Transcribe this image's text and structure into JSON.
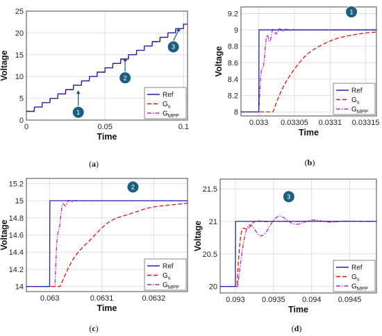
{
  "charts": [
    {
      "id": "a",
      "caption": "(a)",
      "type": "line",
      "xlabel": "Time",
      "ylabel": "Voltage",
      "xlim": [
        0,
        0.1025
      ],
      "ylim": [
        0,
        25
      ],
      "xticks": [
        0,
        0.05,
        0.1
      ],
      "xtick_labels": [
        "0",
        "0.05",
        "0.1"
      ],
      "yticks": [
        0,
        5,
        10,
        15,
        20,
        25
      ],
      "ytick_labels": [
        "0",
        "5",
        "10",
        "15",
        "20",
        "25"
      ],
      "legend_placement": "bottom-right",
      "series": [
        {
          "name": "Ref",
          "color": "#1f1fb0",
          "dash": "solid",
          "model": {
            "kind": "staircase",
            "start_x": 0,
            "end_x": 0.1025,
            "start_y": 2,
            "step_y": 1,
            "step_x": 0.005,
            "max_y": 22
          }
        },
        {
          "name": "G_s",
          "color": "#dd1111",
          "dash": "dashed",
          "model": {
            "kind": "staircase",
            "start_x": 0,
            "end_x": 0.1025,
            "start_y": 2,
            "step_y": 1,
            "step_x": 0.005,
            "max_y": 22
          }
        },
        {
          "name": "G_MPP",
          "color": "#c020c0",
          "dash": "dashdot",
          "model": {
            "kind": "staircase",
            "start_x": 0,
            "end_x": 0.1025,
            "start_y": 2,
            "step_y": 1,
            "step_x": 0.005,
            "max_y": 22
          }
        }
      ],
      "markers": [
        {
          "label": "1",
          "x": 0.033,
          "y": 1.8,
          "arrow_to": [
            0.033,
            6.8
          ]
        },
        {
          "label": "2",
          "x": 0.0628,
          "y": 9.7,
          "arrow_to": [
            0.0628,
            14.3
          ]
        },
        {
          "label": "3",
          "x": 0.0935,
          "y": 16.8,
          "arrow_to": [
            0.0968,
            21.2
          ]
        }
      ]
    },
    {
      "id": "b",
      "caption": "(b)",
      "type": "line",
      "xlabel": "Time",
      "ylabel": "Voltage",
      "xlim": [
        0.032975,
        0.033165
      ],
      "ylim": [
        7.95,
        9.28
      ],
      "xticks": [
        0.033,
        0.03305,
        0.0331,
        0.03315
      ],
      "xtick_labels": [
        "0.033",
        "0.03305",
        "0.0331",
        "0.03315"
      ],
      "yticks": [
        8,
        8.2,
        8.4,
        8.6,
        8.8,
        9,
        9.2
      ],
      "ytick_labels": [
        "8",
        "8.2",
        "8.4",
        "8.6",
        "8.8",
        "9",
        "9.2"
      ],
      "legend_placement": "bottom-right",
      "series": [
        {
          "name": "Ref",
          "color": "#1f1fb0",
          "dash": "solid",
          "model": {
            "kind": "step",
            "x0": 0.033,
            "y0": 8,
            "y1": 9
          }
        },
        {
          "name": "G_s",
          "color": "#dd1111",
          "dash": "dashed",
          "model": {
            "kind": "damped",
            "x0": 0.03302,
            "y0": 8,
            "y1": 9,
            "rise": 4e-05,
            "amp": 0.03,
            "decay": 3e-05,
            "period": 4e-05
          }
        },
        {
          "name": "G_MPP",
          "color": "#c020c0",
          "dash": "dashdot",
          "model": {
            "kind": "damped",
            "x0": 0.033,
            "y0": 8,
            "y1": 9,
            "rise": 6e-06,
            "amp": 0.26,
            "decay": 1.2e-05,
            "period": 9e-06
          }
        }
      ],
      "markers": [
        {
          "label": "1",
          "x": 0.03313,
          "y": 9.22
        }
      ]
    },
    {
      "id": "c",
      "caption": "(c)",
      "type": "line",
      "xlabel": "Time",
      "ylabel": "Voltage",
      "xlim": [
        0.062955,
        0.063265
      ],
      "ylim": [
        13.94,
        15.26
      ],
      "xticks": [
        0.063,
        0.0631,
        0.0632
      ],
      "xtick_labels": [
        "0.063",
        "0.0631",
        "0.0632"
      ],
      "yticks": [
        14,
        14.2,
        14.4,
        14.6,
        14.8,
        15,
        15.2
      ],
      "ytick_labels": [
        "14",
        "14.2",
        "14.4",
        "14.6",
        "14.8",
        "15",
        "15.2"
      ],
      "legend_placement": "bottom-right",
      "series": [
        {
          "name": "Ref",
          "color": "#1f1fb0",
          "dash": "solid",
          "model": {
            "kind": "step",
            "x0": 0.063,
            "y0": 14,
            "y1": 15
          }
        },
        {
          "name": "G_s",
          "color": "#dd1111",
          "dash": "dashed",
          "model": {
            "kind": "damped",
            "x0": 0.06302,
            "y0": 14,
            "y1": 15,
            "rise": 7e-05,
            "amp": 0.09,
            "decay": 6e-05,
            "period": 8e-05
          }
        },
        {
          "name": "G_MPP",
          "color": "#c020c0",
          "dash": "dashdot",
          "model": {
            "kind": "damped",
            "x0": 0.06301,
            "y0": 14,
            "y1": 15,
            "rise": 6e-06,
            "amp": 0.22,
            "decay": 1e-05,
            "period": 1.2e-05
          }
        }
      ],
      "markers": [
        {
          "label": "2",
          "x": 0.06316,
          "y": 15.16
        }
      ]
    },
    {
      "id": "d",
      "caption": "(d)",
      "type": "line",
      "xlabel": "Time",
      "ylabel": "Voltage",
      "xlim": [
        0.0928,
        0.09485
      ],
      "ylim": [
        19.9,
        21.65
      ],
      "xticks": [
        0.093,
        0.0935,
        0.094,
        0.0945
      ],
      "xtick_labels": [
        "0.093",
        "0.0935",
        "0.094",
        "0.0945"
      ],
      "yticks": [
        20,
        20.5,
        21,
        21.5
      ],
      "ytick_labels": [
        "20",
        "20.5",
        "21",
        "21.5"
      ],
      "legend_placement": "bottom-right",
      "series": [
        {
          "name": "Ref",
          "color": "#1f1fb0",
          "dash": "solid",
          "model": {
            "kind": "step",
            "x0": 0.093,
            "y0": 20,
            "y1": 21
          }
        },
        {
          "name": "G_s",
          "color": "#dd1111",
          "dash": "dashed",
          "model": {
            "kind": "damped",
            "x0": 0.09302,
            "y0": 20,
            "y1": 21,
            "rise": 5e-05,
            "amp": 0.42,
            "decay": 8e-05,
            "period": 0.00022
          }
        },
        {
          "name": "G_MPP",
          "color": "#c020c0",
          "dash": "dashdot",
          "model": {
            "kind": "damped",
            "x0": 0.09303,
            "y0": 20,
            "y1": 21,
            "rise": 0.00011,
            "amp": 0.49,
            "decay": 0.00032,
            "period": 0.00045
          }
        }
      ],
      "markers": [
        {
          "label": "3",
          "x": 0.0937,
          "y": 21.38
        }
      ]
    }
  ],
  "legend": {
    "ref_label": "Ref",
    "gs_label": "G",
    "gs_sub": "s",
    "gmpp_label": "G",
    "gmpp_sub": "MPP"
  }
}
